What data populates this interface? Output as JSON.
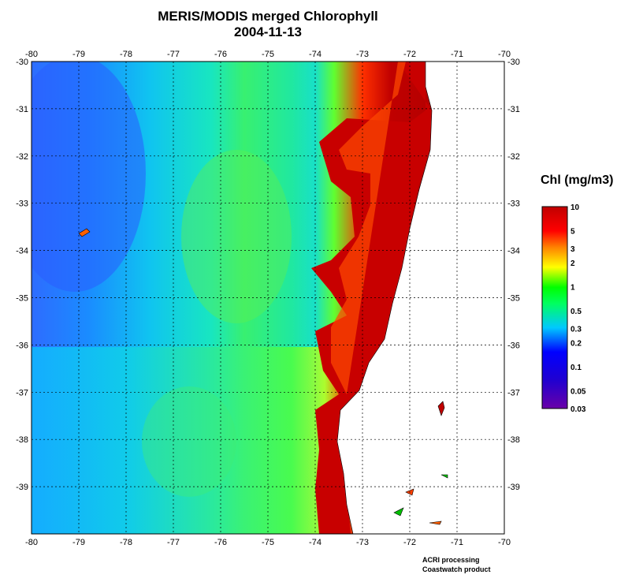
{
  "title": {
    "line1": "MERIS/MODIS merged Chlorophyll",
    "line2": "2004-11-13"
  },
  "map": {
    "lon_ticks": [
      "-80",
      "-79",
      "-78",
      "-77",
      "-76",
      "-75",
      "-74",
      "-73",
      "-72",
      "-71",
      "-70"
    ],
    "lat_ticks": [
      "-30",
      "-31",
      "-32",
      "-33",
      "-34",
      "-35",
      "-36",
      "-37",
      "-38",
      "-39"
    ],
    "lon_range": [
      -80,
      -70
    ],
    "lat_range": [
      -40,
      -30
    ],
    "grid": "dotted",
    "land_color": "#ffffff"
  },
  "colorbar": {
    "title": "Chl (mg/m3)",
    "scale": "log",
    "range": [
      0.03,
      10
    ],
    "tick_labels": [
      "10",
      "5",
      "3",
      "2",
      "1",
      "0.5",
      "0.3",
      "0.2",
      "0.1",
      "0.05",
      "0.03"
    ],
    "colors": [
      "#6a00a8",
      "#0000ff",
      "#00c8ff",
      "#00ff00",
      "#ffff00",
      "#ff8000",
      "#ff0000",
      "#c00000"
    ]
  },
  "credits": {
    "line1": "ACRI processing",
    "line2": "Coastwatch product"
  }
}
